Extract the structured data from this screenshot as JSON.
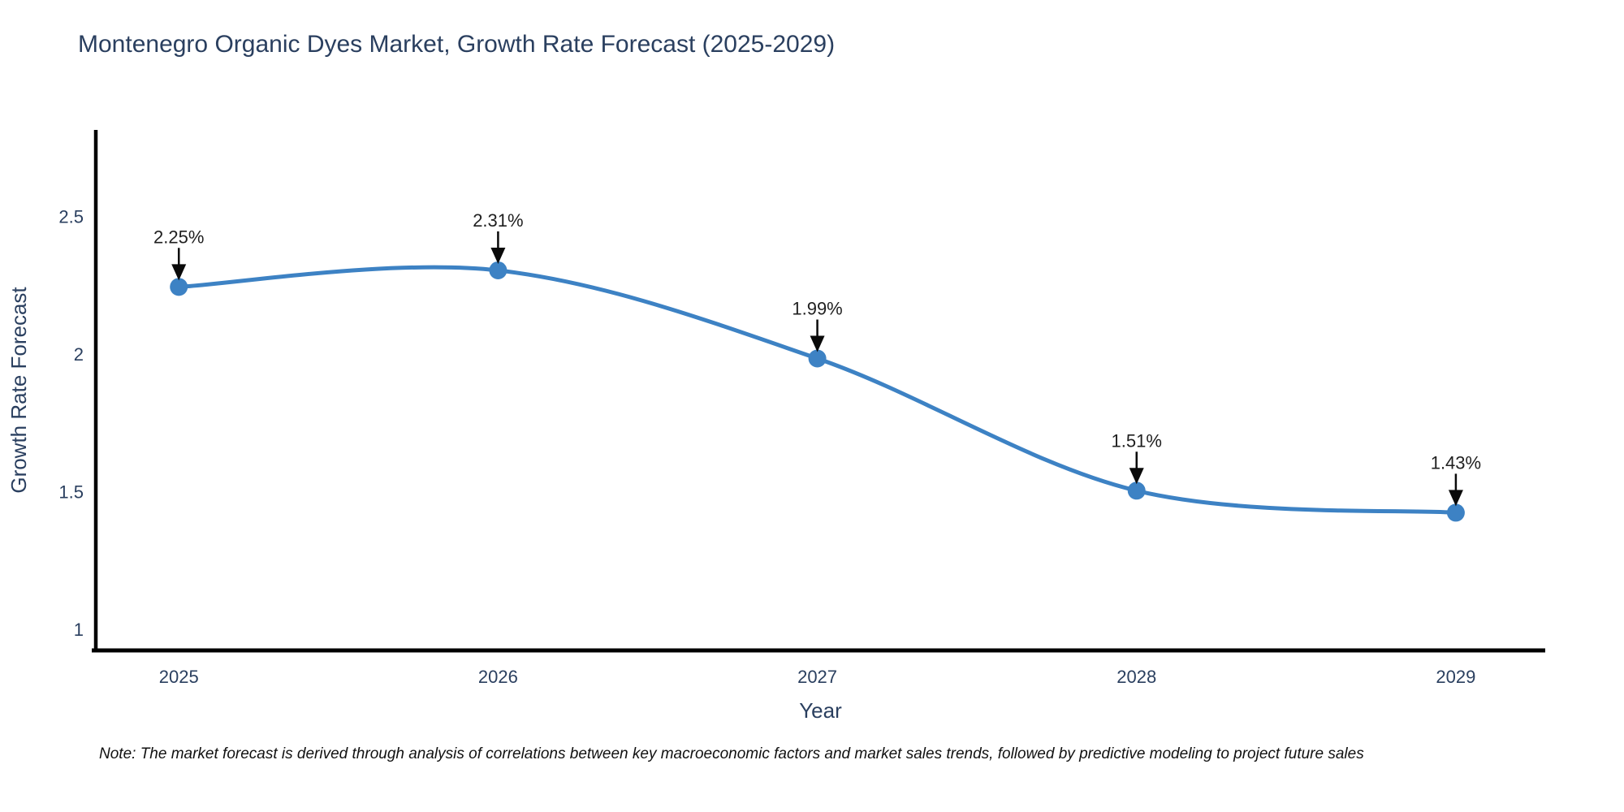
{
  "title": "Montenegro Organic Dyes Market, Growth Rate Forecast (2025-2029)",
  "note": "Note: The market forecast is derived through analysis of correlations between key macroeconomic factors and market sales trends, followed by predictive modeling to project future sales",
  "chart_data": {
    "type": "line",
    "title": "Montenegro Organic Dyes Market, Growth Rate Forecast (2025-2029)",
    "xlabel": "Year",
    "ylabel": "Growth Rate Forecast",
    "x": [
      2025,
      2026,
      2027,
      2028,
      2029
    ],
    "y": [
      2.25,
      2.31,
      1.99,
      1.51,
      1.43
    ],
    "point_labels": [
      "2.25%",
      "2.31%",
      "1.99%",
      "1.51%",
      "1.43%"
    ],
    "xtick_values": [
      2025,
      2026,
      2027,
      2028,
      2029
    ],
    "xtick_labels": [
      "2025",
      "2026",
      "2027",
      "2028",
      "2029"
    ],
    "ytick_values": [
      1,
      1.5,
      2,
      2.5
    ],
    "ytick_labels": [
      "1",
      "1.5",
      "2",
      "2.5"
    ],
    "xlim": [
      2024.74,
      2029.28
    ],
    "ylim": [
      0.93,
      2.82
    ],
    "line_shape": "spline",
    "grid": false,
    "legend": "none",
    "colors": {
      "line": "#3d82c4",
      "marker": "#3d82c4",
      "axis": "#000000",
      "tick_text": "#2a3f5f",
      "axis_title_text": "#2a3f5f",
      "annotation_text": "#1f1f1f",
      "arrow": "#0a0a0a",
      "background": "#ffffff"
    }
  }
}
